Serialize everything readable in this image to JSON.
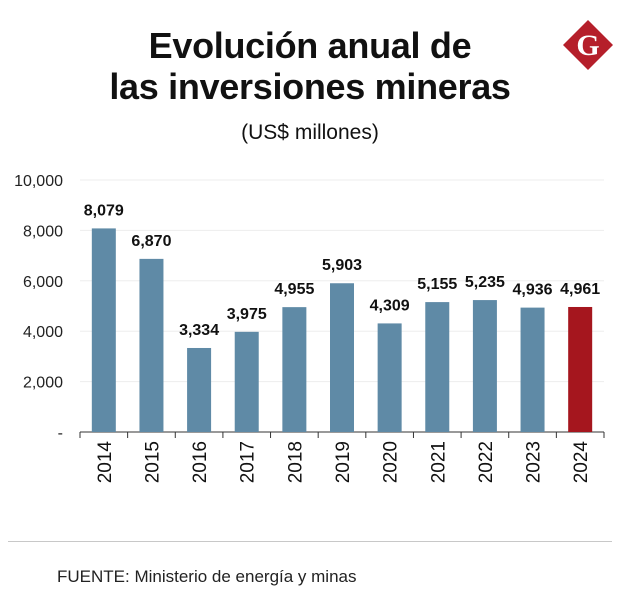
{
  "header": {
    "title_line1": "Evolución anual de",
    "title_line2": "las inversiones mineras",
    "subtitle": "(US$ millones)",
    "logo_letter": "G"
  },
  "footer": {
    "source": "FUENTE: Ministerio de energía y minas"
  },
  "colors": {
    "bar": "#5f8aa6",
    "highlight": "#a5161e",
    "logo": "#b51f2a"
  },
  "chart_data": {
    "type": "bar",
    "title": "Evolución anual de las inversiones mineras",
    "subtitle": "(US$ millones)",
    "categories": [
      "2014",
      "2015",
      "2016",
      "2017",
      "2018",
      "2019",
      "2020",
      "2021",
      "2022",
      "2023",
      "2024"
    ],
    "values": [
      8079,
      6870,
      3334,
      3975,
      4955,
      5903,
      4309,
      5155,
      5235,
      4936,
      4961
    ],
    "value_labels": [
      "8,079",
      "6,870",
      "3,334",
      "3,975",
      "4,955",
      "5,903",
      "4,309",
      "5,155",
      "5,235",
      "4,936",
      "4,961"
    ],
    "highlight_category": "2024",
    "yticks": [
      0,
      2000,
      4000,
      6000,
      8000,
      10000
    ],
    "ytick_labels": [
      "-",
      "2,000",
      "4,000",
      "6,000",
      "8,000",
      "10,000"
    ],
    "ylim": [
      0,
      10000
    ],
    "xlabel": "",
    "ylabel": "",
    "grid": true
  }
}
